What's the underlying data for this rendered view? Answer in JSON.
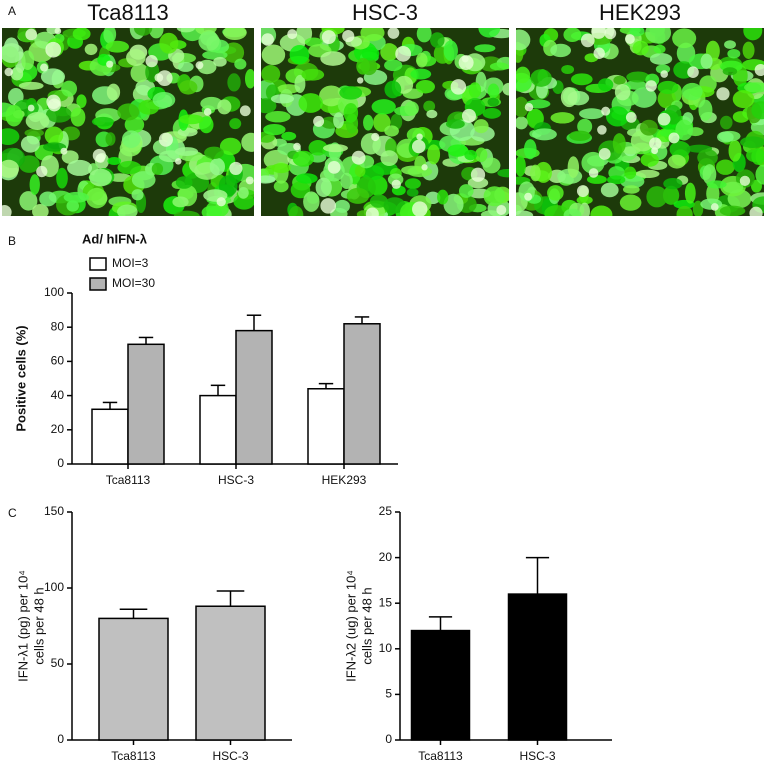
{
  "panel_labels": [
    "A",
    "B",
    "C"
  ],
  "images": [
    {
      "title": "Tca8113"
    },
    {
      "title": "HSC-3"
    },
    {
      "title": "HEK293"
    }
  ],
  "chart_data": [
    {
      "type": "bar",
      "ylabel": "Positive cells (%)",
      "legend_title": "Ad/ hIFN-λ",
      "categories": [
        "Tca8113",
        "HSC-3",
        "HEK293"
      ],
      "series": [
        {
          "name": "MOI=3",
          "color": "#ffffff",
          "values": [
            32,
            40,
            44
          ],
          "errors": [
            4,
            6,
            3
          ]
        },
        {
          "name": "MOI=30",
          "color": "#b3b3b3",
          "values": [
            70,
            78,
            82
          ],
          "errors": [
            4,
            9,
            4
          ]
        }
      ],
      "ylim": [
        0,
        100
      ],
      "yticks": [
        0,
        20,
        40,
        60,
        80,
        100
      ]
    },
    {
      "type": "bar",
      "ylabel": [
        "IFN-λ1 (pg) per 10⁴",
        "cells per 48 h"
      ],
      "categories": [
        "Tca8113",
        "HSC-3"
      ],
      "values": [
        80,
        88
      ],
      "errors": [
        6,
        10
      ],
      "color": "#c0c0c0",
      "ylim": [
        0,
        150
      ],
      "yticks": [
        0,
        50,
        100,
        150
      ]
    },
    {
      "type": "bar",
      "ylabel": [
        "IFN-λ2 (ug) per 10⁴",
        "cells per 48 h"
      ],
      "categories": [
        "Tca8113",
        "HSC-3"
      ],
      "values": [
        12,
        16
      ],
      "errors": [
        1.5,
        4
      ],
      "color": "#000000",
      "ylim": [
        0,
        25
      ],
      "yticks": [
        0,
        5,
        10,
        15,
        20,
        25
      ]
    }
  ]
}
